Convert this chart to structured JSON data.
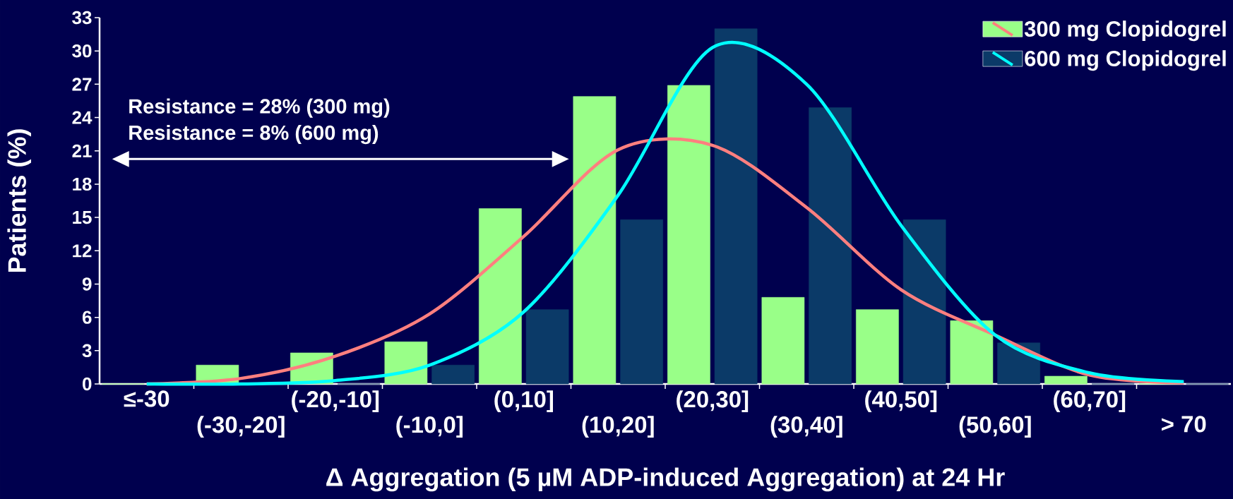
{
  "chart_data": {
    "type": "bar",
    "xlabel": "Δ Aggregation (5 µM ADP-induced Aggregation) at 24 Hr",
    "ylabel": "Patients (%)",
    "categories": [
      "≤-30",
      "(-30,-20]",
      "(-20,-10]",
      "(-10,0]",
      "(0,10]",
      "(10,20]",
      "(20,30]",
      "(30,40]",
      "(40,50]",
      "(50,60]",
      "(60,70]",
      "> 70"
    ],
    "series": [
      {
        "name": "300 mg Clopidogrel",
        "color": "#99ff88",
        "values": [
          0,
          1.7,
          2.8,
          3.8,
          15.8,
          25.9,
          26.9,
          7.8,
          6.7,
          5.7,
          0.7,
          0
        ]
      },
      {
        "name": "600 mg Clopidogrel",
        "color": "#0b3a68",
        "values": [
          0,
          0,
          0,
          1.7,
          6.7,
          14.8,
          32,
          24.9,
          14.8,
          3.7,
          0,
          0
        ]
      },
      {
        "type": "line",
        "color": "#ff7f7f",
        "values": [
          0,
          0.5,
          2.5,
          6.3,
          13.3,
          21.1,
          21.5,
          15.9,
          8.5,
          4.4,
          0.8,
          0.1
        ]
      },
      {
        "type": "line",
        "color": "#00ffff",
        "values": [
          0,
          0,
          0.3,
          1.7,
          6.5,
          17,
          30.3,
          27,
          14.3,
          4.4,
          1,
          0.2
        ]
      }
    ],
    "ylim": [
      0,
      33
    ],
    "yticks": [
      0,
      3,
      6,
      9,
      12,
      15,
      18,
      21,
      24,
      27,
      30,
      33
    ],
    "legend": "top right",
    "annotations": [
      "Resistance = 28% (300 mg)",
      "Resistance = 8% (600 mg)"
    ]
  }
}
